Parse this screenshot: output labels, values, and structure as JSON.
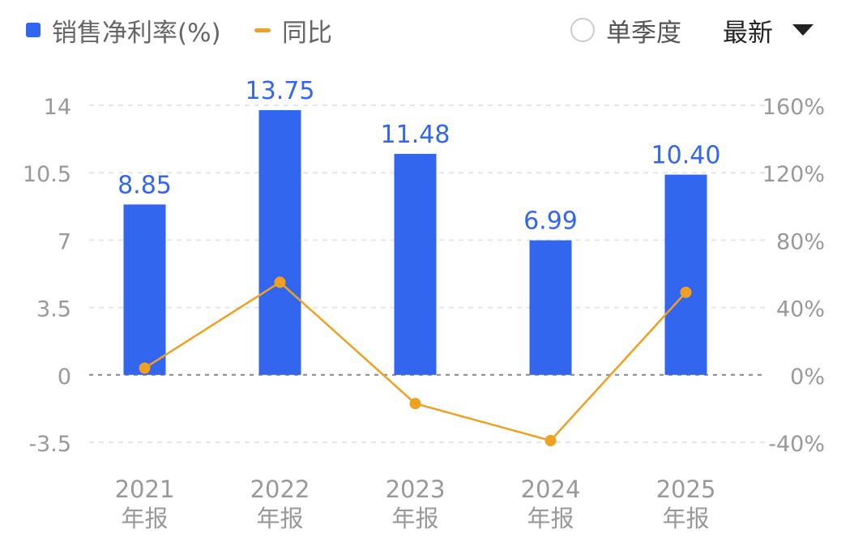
{
  "header": {
    "legend": [
      {
        "label": "销售净利率(%)",
        "color": "#3366ee",
        "marker": "square"
      },
      {
        "label": "同比",
        "color": "#f0a020",
        "marker": "dash"
      }
    ],
    "toggle_label": "单季度",
    "dropdown_label": "最新"
  },
  "chart_data": {
    "type": "bar",
    "categories": [
      {
        "year": "2021",
        "period": "年报"
      },
      {
        "year": "2022",
        "period": "年报"
      },
      {
        "year": "2023",
        "period": "年报"
      },
      {
        "year": "2024",
        "period": "年报"
      },
      {
        "year": "2025",
        "period": "年报"
      }
    ],
    "series": [
      {
        "name": "销售净利率(%)",
        "type": "bar",
        "axis": "left",
        "color": "#3366ee",
        "values": [
          8.85,
          13.75,
          11.48,
          6.99,
          10.4
        ],
        "labels": [
          "8.85",
          "13.75",
          "11.48",
          "6.99",
          "10.40"
        ]
      },
      {
        "name": "同比",
        "type": "line",
        "axis": "right",
        "color": "#f0a020",
        "values": [
          4,
          55,
          -17,
          -39,
          49
        ]
      }
    ],
    "y_left": {
      "ylim": [
        -3.5,
        14
      ],
      "ticks": [
        14,
        10.5,
        7,
        3.5,
        0,
        -3.5
      ],
      "tick_labels": [
        "14",
        "10.5",
        "7",
        "3.5",
        "0",
        "-3.5"
      ]
    },
    "y_right": {
      "ylim": [
        -40,
        160
      ],
      "ticks": [
        160,
        120,
        80,
        40,
        0,
        -40
      ],
      "tick_labels": [
        "160%",
        "120%",
        "80%",
        "40%",
        "0%",
        "-40%"
      ]
    },
    "grid": true,
    "label_color": "#3366ee",
    "axis_label_color": "#999999"
  }
}
